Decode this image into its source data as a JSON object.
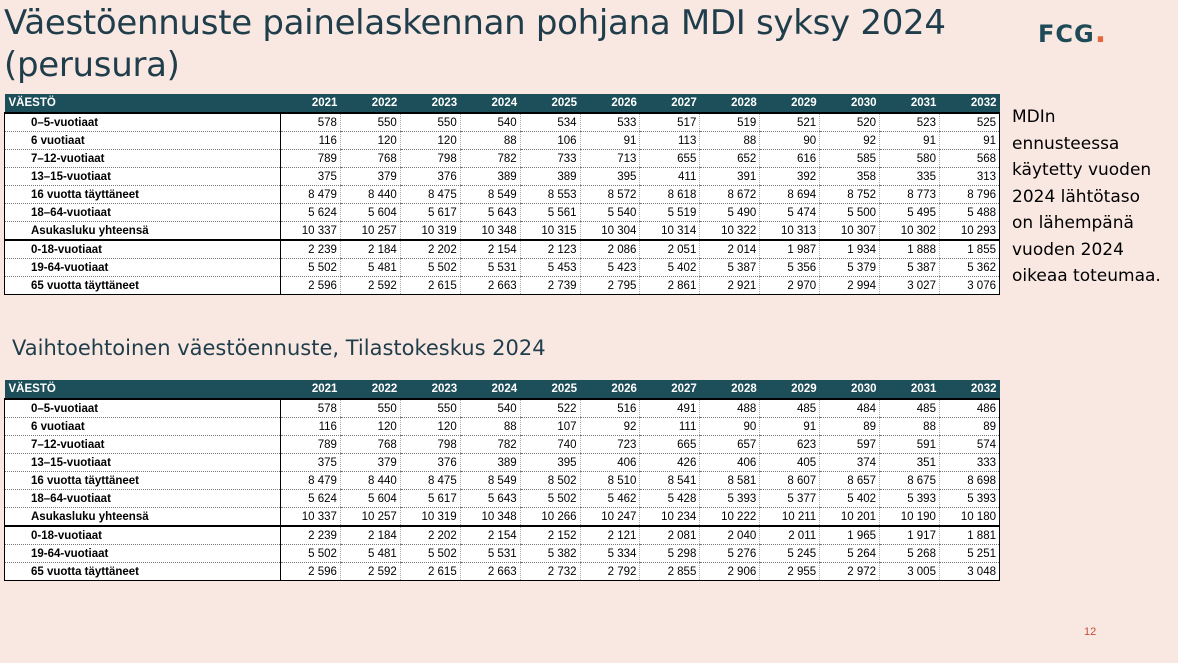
{
  "title": "Väestöennuste painelaskennan pohjana MDI syksy 2024 (perusura)",
  "logo": {
    "text": "FCG",
    "dot": "."
  },
  "note": "MDIn ennusteessa käytetty vuoden 2024 lähtötaso on lähempänä vuoden 2024 oikeaa toteumaa.",
  "subtitle": "Vaihtoehtoinen väestöennuste, Tilastokeskus 2024",
  "page_number": "12",
  "table1": {
    "header_label": "VÄESTÖ",
    "years": [
      "2021",
      "2022",
      "2023",
      "2024",
      "2025",
      "2026",
      "2027",
      "2028",
      "2029",
      "2030",
      "2031",
      "2032"
    ],
    "rows": [
      {
        "label": "0–5-vuotiaat",
        "values": [
          "578",
          "550",
          "550",
          "540",
          "534",
          "533",
          "517",
          "519",
          "521",
          "520",
          "523",
          "525"
        ]
      },
      {
        "label": "6 vuotiaat",
        "values": [
          "116",
          "120",
          "120",
          "88",
          "106",
          "91",
          "113",
          "88",
          "90",
          "92",
          "91",
          "91"
        ]
      },
      {
        "label": "7–12-vuotiaat",
        "values": [
          "789",
          "768",
          "798",
          "782",
          "733",
          "713",
          "655",
          "652",
          "616",
          "585",
          "580",
          "568"
        ]
      },
      {
        "label": "13–15-vuotiaat",
        "values": [
          "375",
          "379",
          "376",
          "389",
          "389",
          "395",
          "411",
          "391",
          "392",
          "358",
          "335",
          "313"
        ]
      },
      {
        "label": "16 vuotta täyttäneet",
        "values": [
          "8 479",
          "8 440",
          "8 475",
          "8 549",
          "8 553",
          "8 572",
          "8 618",
          "8 672",
          "8 694",
          "8 752",
          "8 773",
          "8 796"
        ]
      },
      {
        "label": "18–64-vuotiaat",
        "values": [
          "5 624",
          "5 604",
          "5 617",
          "5 643",
          "5 561",
          "5 540",
          "5 519",
          "5 490",
          "5 474",
          "5 500",
          "5 495",
          "5 488"
        ]
      },
      {
        "label": "Asukasluku yhteensä",
        "values": [
          "10 337",
          "10 257",
          "10 319",
          "10 348",
          "10 315",
          "10 304",
          "10 314",
          "10 322",
          "10 313",
          "10 307",
          "10 302",
          "10 293"
        ]
      },
      {
        "label": "0-18-vuotiaat",
        "values": [
          "2 239",
          "2 184",
          "2 202",
          "2 154",
          "2 123",
          "2 086",
          "2 051",
          "2 014",
          "1 987",
          "1 934",
          "1 888",
          "1 855"
        ]
      },
      {
        "label": "19-64-vuotiaat",
        "values": [
          "5 502",
          "5 481",
          "5 502",
          "5 531",
          "5 453",
          "5 423",
          "5 402",
          "5 387",
          "5 356",
          "5 379",
          "5 387",
          "5 362"
        ]
      },
      {
        "label": "65 vuotta täyttäneet",
        "values": [
          "2 596",
          "2 592",
          "2 615",
          "2 663",
          "2 739",
          "2 795",
          "2 861",
          "2 921",
          "2 970",
          "2 994",
          "3 027",
          "3 076"
        ]
      }
    ]
  },
  "table2": {
    "header_label": "VÄESTÖ",
    "years": [
      "2021",
      "2022",
      "2023",
      "2024",
      "2025",
      "2026",
      "2027",
      "2028",
      "2029",
      "2030",
      "2031",
      "2032"
    ],
    "rows": [
      {
        "label": "0–5-vuotiaat",
        "values": [
          "578",
          "550",
          "550",
          "540",
          "522",
          "516",
          "491",
          "488",
          "485",
          "484",
          "485",
          "486"
        ]
      },
      {
        "label": "6 vuotiaat",
        "values": [
          "116",
          "120",
          "120",
          "88",
          "107",
          "92",
          "111",
          "90",
          "91",
          "89",
          "88",
          "89"
        ]
      },
      {
        "label": "7–12-vuotiaat",
        "values": [
          "789",
          "768",
          "798",
          "782",
          "740",
          "723",
          "665",
          "657",
          "623",
          "597",
          "591",
          "574"
        ]
      },
      {
        "label": "13–15-vuotiaat",
        "values": [
          "375",
          "379",
          "376",
          "389",
          "395",
          "406",
          "426",
          "406",
          "405",
          "374",
          "351",
          "333"
        ]
      },
      {
        "label": "16 vuotta täyttäneet",
        "values": [
          "8 479",
          "8 440",
          "8 475",
          "8 549",
          "8 502",
          "8 510",
          "8 541",
          "8 581",
          "8 607",
          "8 657",
          "8 675",
          "8 698"
        ]
      },
      {
        "label": "18–64-vuotiaat",
        "values": [
          "5 624",
          "5 604",
          "5 617",
          "5 643",
          "5 502",
          "5 462",
          "5 428",
          "5 393",
          "5 377",
          "5 402",
          "5 393",
          "5 393"
        ]
      },
      {
        "label": "Asukasluku yhteensä",
        "values": [
          "10 337",
          "10 257",
          "10 319",
          "10 348",
          "10 266",
          "10 247",
          "10 234",
          "10 222",
          "10 211",
          "10 201",
          "10 190",
          "10 180"
        ]
      },
      {
        "label": "0-18-vuotiaat",
        "values": [
          "2 239",
          "2 184",
          "2 202",
          "2 154",
          "2 152",
          "2 121",
          "2 081",
          "2 040",
          "2 011",
          "1 965",
          "1 917",
          "1 881"
        ]
      },
      {
        "label": "19-64-vuotiaat",
        "values": [
          "5 502",
          "5 481",
          "5 502",
          "5 531",
          "5 382",
          "5 334",
          "5 298",
          "5 276",
          "5 245",
          "5 264",
          "5 268",
          "5 251"
        ]
      },
      {
        "label": "65 vuotta täyttäneet",
        "values": [
          "2 596",
          "2 592",
          "2 615",
          "2 663",
          "2 732",
          "2 792",
          "2 855",
          "2 906",
          "2 955",
          "2 972",
          "3 005",
          "3 048"
        ]
      }
    ]
  }
}
